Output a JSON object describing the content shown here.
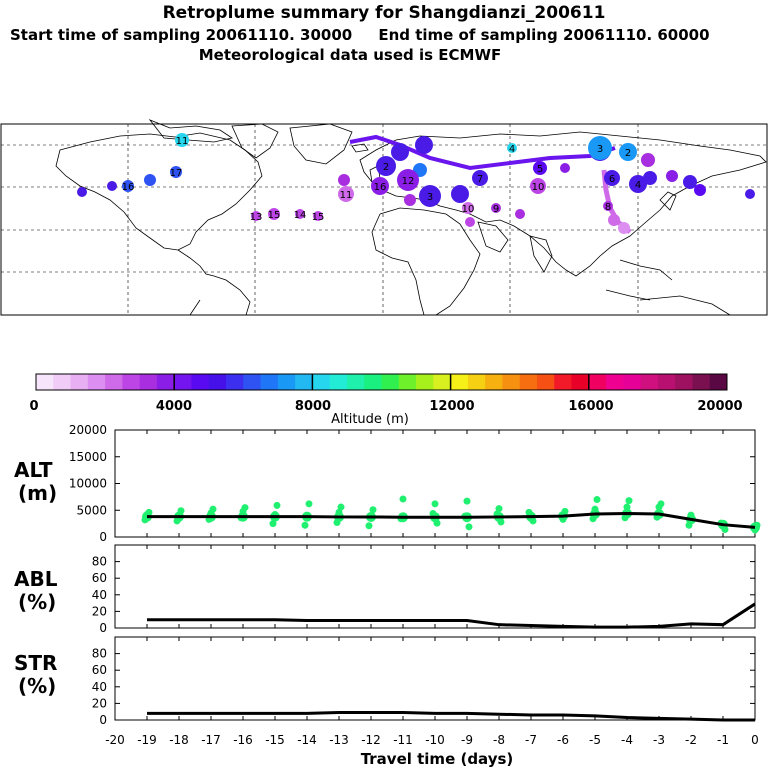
{
  "header": {
    "title": "Retroplume summary for Shangdianzi_200611",
    "line1": "Start time of sampling 20061110. 30000     End time of sampling 20061110. 60000",
    "line2": "Meteorological data used is ECMWF"
  },
  "colorbar": {
    "ticks": [
      "0",
      "4000",
      "8000",
      "12000",
      "16000",
      "20000"
    ],
    "label": "Altitude (m)",
    "colors": [
      "#f7e6fb",
      "#f0ccf7",
      "#e8b0f2",
      "#dc8ff0",
      "#cf6be8",
      "#bd45e6",
      "#a82ee0",
      "#8a1ee6",
      "#7414ef",
      "#5a0af0",
      "#4610e8",
      "#3c2ff0",
      "#2e53f2",
      "#1f76f6",
      "#1a98f6",
      "#22b8f2",
      "#26d6ee",
      "#23ecd6",
      "#1ff0ac",
      "#1af080",
      "#30f050",
      "#6ef02a",
      "#a8f01c",
      "#d8f020",
      "#f6f018",
      "#f6d012",
      "#f6b010",
      "#f69010",
      "#f66e10",
      "#f65014",
      "#f21a28",
      "#e80028",
      "#f00060",
      "#f00090",
      "#e60098",
      "#d0107e",
      "#b81070",
      "#9e1060",
      "#7a1050",
      "#5a0844"
    ]
  },
  "map": {
    "labels": [
      {
        "n": "1",
        "c": "#4a1be6"
      },
      {
        "n": "2",
        "c": "#4a1be6"
      },
      {
        "n": "3",
        "c": "#4a1be6"
      },
      {
        "n": "4",
        "c": "#4a1be6"
      },
      {
        "n": "5",
        "c": "#5a0af0"
      },
      {
        "n": "6",
        "c": "#4a1be6"
      },
      {
        "n": "7",
        "c": "#4a1be6"
      },
      {
        "n": "8",
        "c": "#a82ee0"
      },
      {
        "n": "9",
        "c": "#a82ee0"
      },
      {
        "n": "10",
        "c": "#cf6be8"
      },
      {
        "n": "11",
        "c": "#cf6be8"
      },
      {
        "n": "12",
        "c": "#8a1ee6"
      },
      {
        "n": "13",
        "c": "#bd45e6"
      },
      {
        "n": "14",
        "c": "#bd45e6"
      },
      {
        "n": "15",
        "c": "#bd45e6"
      },
      {
        "n": "16",
        "c": "#8a1ee6"
      },
      {
        "n": "16",
        "c": "#2e53f2"
      },
      {
        "n": "17",
        "c": "#2e53f2"
      },
      {
        "n": "11",
        "c": "#26d6ee"
      },
      {
        "n": "4",
        "c": "#26d6ee"
      },
      {
        "n": "3",
        "c": "#1a98f6"
      },
      {
        "n": "2",
        "c": "#1a98f6"
      },
      {
        "n": "15",
        "c": "#bd45e6"
      },
      {
        "n": "10",
        "c": "#bd45e6"
      }
    ]
  },
  "chart_data": [
    {
      "type": "line",
      "panel": "ALT",
      "ylabel": "ALT\n(m)",
      "ylim": [
        0,
        20000
      ],
      "yticks": [
        "0",
        "5000",
        "10000",
        "15000",
        "20000"
      ],
      "x": [
        -19,
        -18,
        -17,
        -16,
        -15,
        -14,
        -13,
        -12,
        -11,
        -10,
        -9,
        -8,
        -7,
        -6,
        -5,
        -4,
        -3,
        -2,
        -1,
        0
      ],
      "values": [
        3800,
        3800,
        3800,
        3800,
        3800,
        3800,
        3750,
        3750,
        3700,
        3700,
        3700,
        3750,
        3800,
        3900,
        4300,
        4400,
        4300,
        3300,
        2300,
        1800
      ],
      "scatter": [
        [
          -19,
          3200
        ],
        [
          -19,
          4200
        ],
        [
          -19,
          4600
        ],
        [
          -18,
          3000
        ],
        [
          -18,
          4100
        ],
        [
          -18,
          4900
        ],
        [
          -17,
          3300
        ],
        [
          -17,
          4500
        ],
        [
          -17,
          5200
        ],
        [
          -16,
          3600
        ],
        [
          -16,
          4800
        ],
        [
          -16,
          5500
        ],
        [
          -15,
          2500
        ],
        [
          -15,
          4200
        ],
        [
          -15,
          5900
        ],
        [
          -14,
          2200
        ],
        [
          -14,
          4000
        ],
        [
          -14,
          6200
        ],
        [
          -13,
          2700
        ],
        [
          -13,
          4600
        ],
        [
          -13,
          5600
        ],
        [
          -12,
          2100
        ],
        [
          -12,
          3500
        ],
        [
          -12,
          5100
        ],
        [
          -11,
          3400
        ],
        [
          -11,
          7100
        ],
        [
          -10,
          2600
        ],
        [
          -10,
          4400
        ],
        [
          -10,
          6200
        ],
        [
          -9,
          1900
        ],
        [
          -9,
          3900
        ],
        [
          -9,
          6700
        ],
        [
          -8,
          2800
        ],
        [
          -8,
          4300
        ],
        [
          -8,
          5300
        ],
        [
          -7,
          3000
        ],
        [
          -7,
          4600
        ],
        [
          -6,
          3300
        ],
        [
          -6,
          4800
        ],
        [
          -5,
          3400
        ],
        [
          -5,
          5200
        ],
        [
          -5,
          7000
        ],
        [
          -4,
          3600
        ],
        [
          -4,
          5600
        ],
        [
          -4,
          6800
        ],
        [
          -3,
          3700
        ],
        [
          -3,
          5600
        ],
        [
          -3,
          6200
        ],
        [
          -2,
          2200
        ],
        [
          -2,
          4100
        ],
        [
          -1,
          1400
        ],
        [
          -1,
          2600
        ],
        [
          0,
          1300
        ],
        [
          0,
          2200
        ]
      ]
    },
    {
      "type": "line",
      "panel": "ABL",
      "ylabel": "ABL\n(%)",
      "ylim": [
        0,
        100
      ],
      "yticks": [
        "0",
        "20",
        "40",
        "60",
        "80"
      ],
      "x": [
        -19,
        -18,
        -17,
        -16,
        -15,
        -14,
        -13,
        -12,
        -11,
        -10,
        -9,
        -8,
        -7,
        -6,
        -5,
        -4,
        -3,
        -2,
        -1,
        0
      ],
      "values": [
        10,
        10,
        10,
        10,
        10,
        9,
        9,
        9,
        9,
        9,
        9,
        4,
        3,
        2,
        1,
        1,
        2,
        5,
        4,
        29
      ]
    },
    {
      "type": "line",
      "panel": "STR",
      "ylabel": "STR\n(%)",
      "ylim": [
        0,
        100
      ],
      "yticks": [
        "0",
        "20",
        "40",
        "60",
        "80"
      ],
      "xlabel": "Travel time (days)",
      "xticks": [
        "-20",
        "-19",
        "-18",
        "-17",
        "-16",
        "-15",
        "-14",
        "-13",
        "-12",
        "-11",
        "-10",
        "-9",
        "-8",
        "-7",
        "-6",
        "-5",
        "-4",
        "-3",
        "-2",
        "-1",
        "0"
      ],
      "x": [
        -19,
        -18,
        -17,
        -16,
        -15,
        -14,
        -13,
        -12,
        -11,
        -10,
        -9,
        -8,
        -7,
        -6,
        -5,
        -4,
        -3,
        -2,
        -1,
        0
      ],
      "values": [
        8,
        8,
        8,
        8,
        8,
        8,
        9,
        9,
        9,
        8,
        8,
        7,
        6,
        6,
        5,
        3,
        2,
        1,
        0,
        0
      ]
    }
  ]
}
